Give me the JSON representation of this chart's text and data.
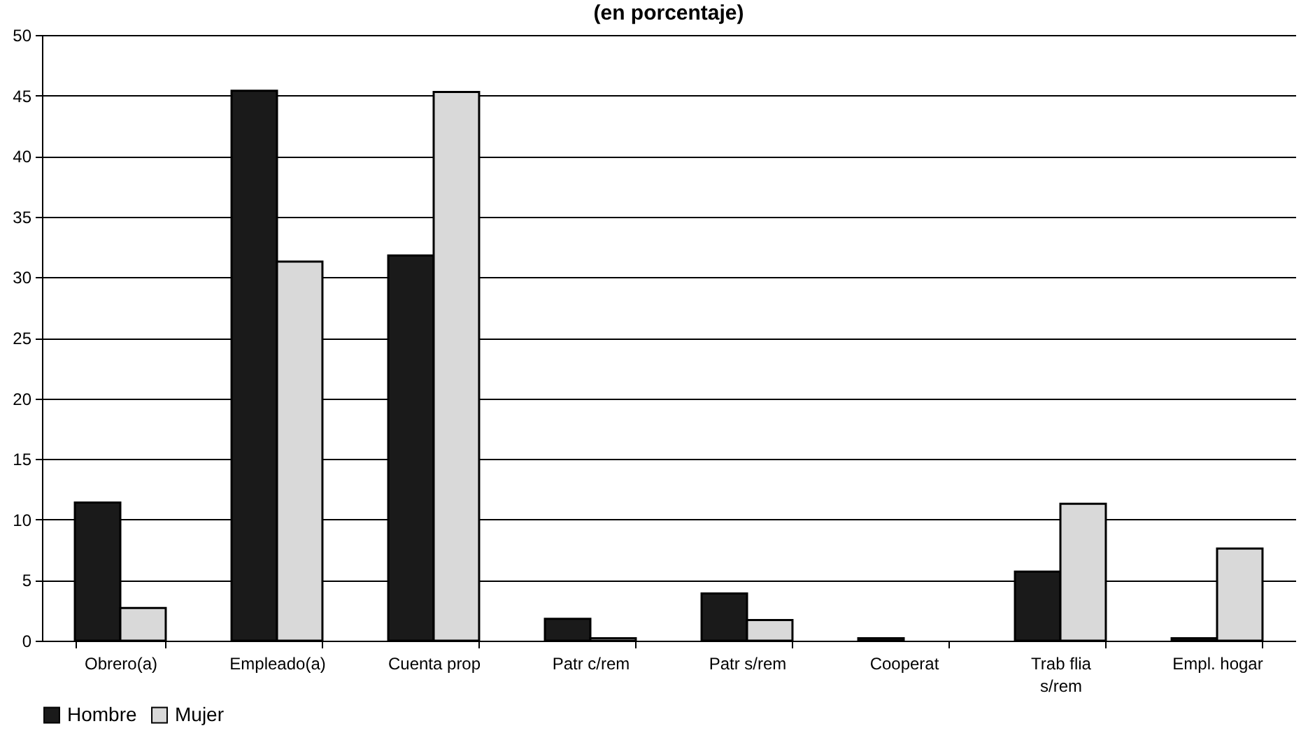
{
  "chart_data": {
    "type": "bar",
    "title": "(en porcentaje)",
    "categories": [
      "Obrero(a)",
      "Empleado(a)",
      "Cuenta prop",
      "Patr c/rem",
      "Patr s/rem",
      "Cooperat",
      "Trab flia s/rem",
      "Empl. hogar"
    ],
    "series": [
      {
        "name": "Hombre",
        "color": "#1a1a1a",
        "values": [
          11.4,
          45.4,
          31.8,
          1.8,
          3.9,
          0.2,
          5.7,
          0.2
        ]
      },
      {
        "name": "Mujer",
        "color": "#d9d9d9",
        "values": [
          2.7,
          31.3,
          45.3,
          0.2,
          1.7,
          0,
          11.3,
          7.6
        ]
      }
    ],
    "ylim": [
      0,
      50
    ],
    "yticks": [
      0,
      5,
      10,
      15,
      20,
      25,
      30,
      35,
      40,
      45,
      50
    ],
    "grid": "y",
    "legend": "bottom"
  }
}
